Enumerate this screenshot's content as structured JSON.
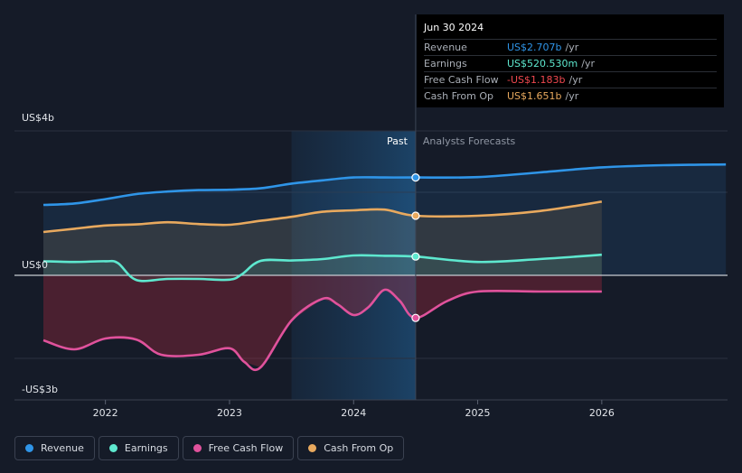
{
  "tooltip": {
    "date": "Jun 30 2024",
    "rows": [
      {
        "label": "Revenue",
        "value": "US$2.707b",
        "unit": "/yr",
        "color": "#2f95e8"
      },
      {
        "label": "Earnings",
        "value": "US$520.530m",
        "unit": "/yr",
        "color": "#5ee8cf"
      },
      {
        "label": "Free Cash Flow",
        "value": "-US$1.183b",
        "unit": "/yr",
        "color": "#f0484f"
      },
      {
        "label": "Cash From Op",
        "value": "US$1.651b",
        "unit": "/yr",
        "color": "#e8a95e"
      }
    ]
  },
  "chart_data": {
    "type": "line",
    "y_axis_labels": [
      "US$4b",
      "US$0",
      "-US$3b"
    ],
    "ylim": [
      -3.0,
      4.0
    ],
    "x_ticks": [
      "2022",
      "2023",
      "2024",
      "2025",
      "2026"
    ],
    "xlim": [
      2021.4,
      2027.0
    ],
    "past_label": "Past",
    "forecast_label": "Analysts Forecasts",
    "divider_x": 2024.5,
    "past_region_start": 2023.5,
    "series": [
      {
        "name": "Revenue",
        "color": "#2f95e8",
        "x": [
          2021.5,
          2021.75,
          2022.0,
          2022.25,
          2022.5,
          2022.75,
          2023.0,
          2023.25,
          2023.5,
          2023.75,
          2024.0,
          2024.25,
          2024.5,
          2025.0,
          2025.5,
          2026.0,
          2026.5,
          2027.0
        ],
        "y": [
          1.95,
          1.99,
          2.11,
          2.25,
          2.32,
          2.36,
          2.37,
          2.41,
          2.54,
          2.63,
          2.71,
          2.71,
          2.71,
          2.72,
          2.85,
          2.99,
          3.05,
          3.07
        ]
      },
      {
        "name": "Earnings",
        "color": "#5ee8cf",
        "x": [
          2021.5,
          2021.75,
          2022.0,
          2022.1,
          2022.25,
          2022.5,
          2022.75,
          2023.0,
          2023.1,
          2023.25,
          2023.5,
          2023.75,
          2024.0,
          2024.25,
          2024.5,
          2025.0,
          2025.5,
          2026.0
        ],
        "y": [
          0.39,
          0.37,
          0.39,
          0.34,
          -0.13,
          -0.1,
          -0.1,
          -0.12,
          0.03,
          0.4,
          0.41,
          0.45,
          0.55,
          0.54,
          0.52,
          0.37,
          0.45,
          0.57
        ]
      },
      {
        "name": "Free Cash Flow",
        "color": "#e0529c",
        "x": [
          2021.5,
          2021.75,
          2022.0,
          2022.25,
          2022.45,
          2022.75,
          2023.0,
          2023.12,
          2023.25,
          2023.5,
          2023.75,
          2023.87,
          2024.0,
          2024.12,
          2024.25,
          2024.37,
          2024.5,
          2024.75,
          2025.0,
          2025.5,
          2026.0
        ],
        "y": [
          -1.8,
          -2.05,
          -1.75,
          -1.78,
          -2.2,
          -2.2,
          -2.02,
          -2.4,
          -2.55,
          -1.25,
          -0.65,
          -0.8,
          -1.1,
          -0.88,
          -0.4,
          -0.7,
          -1.18,
          -0.72,
          -0.45,
          -0.45,
          -0.45
        ]
      },
      {
        "name": "Cash From Op",
        "color": "#e8a95e",
        "x": [
          2021.5,
          2021.75,
          2022.0,
          2022.25,
          2022.5,
          2022.75,
          2023.0,
          2023.25,
          2023.5,
          2023.75,
          2024.0,
          2024.25,
          2024.5,
          2025.0,
          2025.5,
          2026.0
        ],
        "y": [
          1.2,
          1.29,
          1.38,
          1.41,
          1.47,
          1.42,
          1.4,
          1.51,
          1.62,
          1.76,
          1.8,
          1.82,
          1.65,
          1.65,
          1.78,
          2.04
        ]
      }
    ],
    "markers_at_x": 2024.5
  },
  "legend": [
    {
      "label": "Revenue",
      "color": "#2f95e8"
    },
    {
      "label": "Earnings",
      "color": "#5ee8cf"
    },
    {
      "label": "Free Cash Flow",
      "color": "#e0529c"
    },
    {
      "label": "Cash From Op",
      "color": "#e8a95e"
    }
  ]
}
